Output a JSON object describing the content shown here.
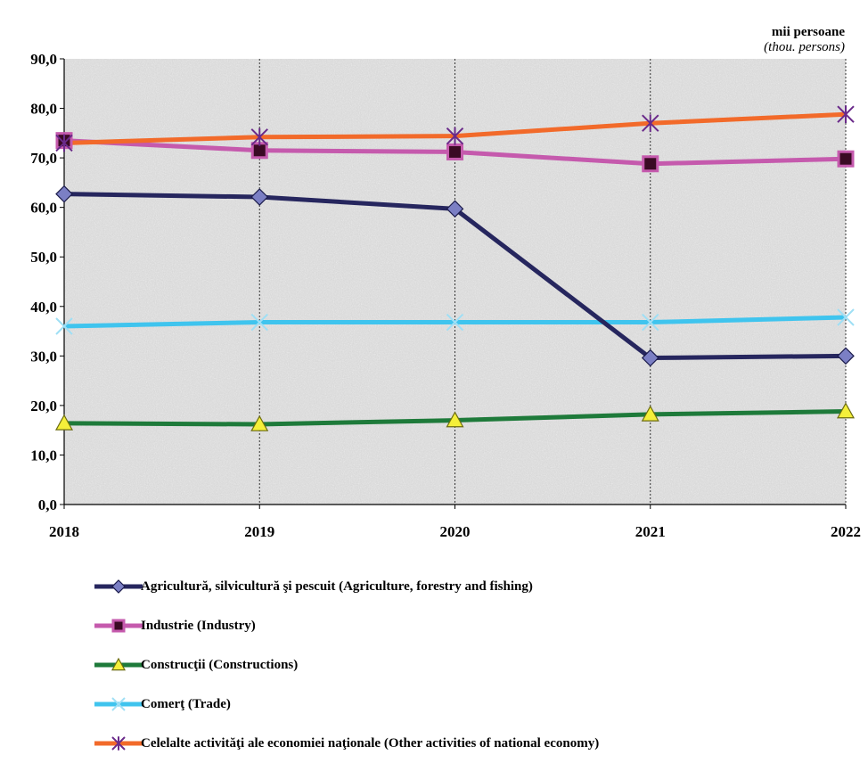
{
  "chart_data": {
    "type": "line",
    "unit_label": "mii persoane",
    "unit_label_en": "(thou. persons)",
    "categories": [
      "2018",
      "2019",
      "2020",
      "2021",
      "2022"
    ],
    "y_ticks": [
      "0,0",
      "10,0",
      "20,0",
      "30,0",
      "40,0",
      "50,0",
      "60,0",
      "70,0",
      "80,0",
      "90,0"
    ],
    "ylim": [
      0,
      90
    ],
    "grid": "vertical dashed",
    "legend_position": "bottom",
    "series": [
      {
        "name": "Agricultură, silvicultură şi pescuit (Agriculture, forestry and fishing)",
        "values": [
          62.7,
          62.1,
          59.7,
          29.6,
          30.0
        ],
        "color": "#26265e",
        "marker": "diamond",
        "marker_color": "#7b7fc4"
      },
      {
        "name": "Industrie (Industry)",
        "values": [
          73.5,
          71.5,
          71.2,
          68.8,
          69.8
        ],
        "color": "#c55aad",
        "marker": "square",
        "marker_color": "#3a0a24"
      },
      {
        "name": "Construcţii (Constructions)",
        "values": [
          16.4,
          16.2,
          17.0,
          18.2,
          18.8
        ],
        "color": "#1e7a3a",
        "marker": "triangle",
        "marker_color": "#f4ef3a"
      },
      {
        "name": "Comerţ (Trade)",
        "values": [
          36.0,
          36.8,
          36.8,
          36.8,
          37.8
        ],
        "color": "#3fc4ee",
        "marker": "x",
        "marker_color": "#9fdff5"
      },
      {
        "name": "Celelalte activităţi ale economiei naţionale  (Other activities of national economy)",
        "values": [
          73.0,
          74.2,
          74.4,
          77.0,
          78.8
        ],
        "color": "#f26a2a",
        "marker": "star",
        "marker_color": "#6a2a8a"
      }
    ]
  }
}
